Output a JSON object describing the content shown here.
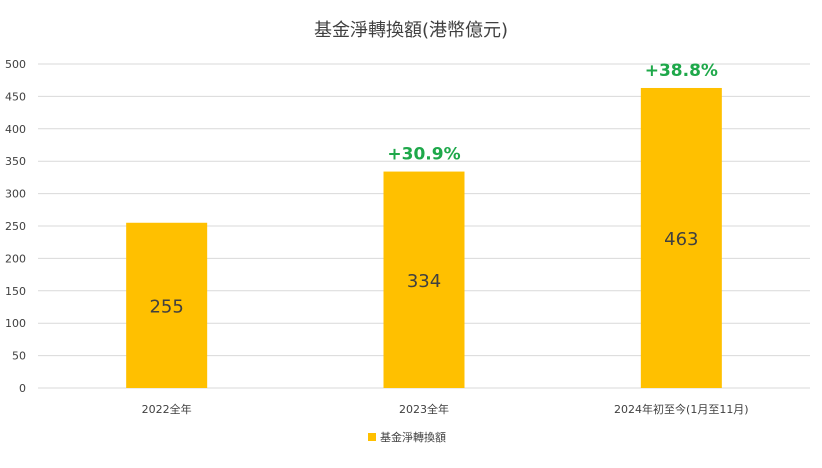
{
  "chart_data": {
    "type": "bar",
    "title": "基金淨轉換額(港幣億元)",
    "categories": [
      "2022全年",
      "2023全年",
      "2024年初至今(1月至11月)"
    ],
    "series": [
      {
        "name": "基金淨轉換額",
        "values": [
          255,
          334,
          463
        ],
        "data_labels": [
          "255",
          "334",
          "463"
        ],
        "growth_labels": [
          "",
          "+30.9%",
          "+38.8%"
        ]
      }
    ],
    "ylim": [
      0,
      500
    ],
    "yticks": [
      0,
      50,
      100,
      150,
      200,
      250,
      300,
      350,
      400,
      450,
      500
    ],
    "grid": true,
    "legend": "bottom",
    "colors": {
      "bar": "#ffc000",
      "growth": "#1ea84a",
      "grid": "#d9d9d9",
      "text": "#404040"
    }
  }
}
